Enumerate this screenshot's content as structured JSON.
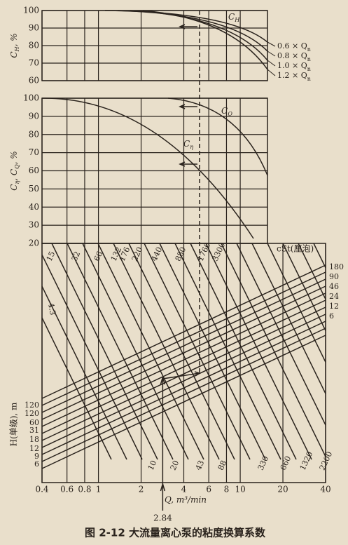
{
  "top_panel": {
    "y_label": [
      {
        "text": "C"
      },
      {
        "text": "H",
        "sub": true
      },
      {
        "text": ", %"
      }
    ],
    "ylim": [
      60,
      100
    ],
    "yticks": [
      100,
      90,
      80,
      70,
      60
    ],
    "curve_label": [
      {
        "text": "C"
      },
      {
        "text": "H",
        "sub": true
      }
    ],
    "flow_labels": [
      [
        {
          "text": "0.6 × Q"
        },
        {
          "text": "n",
          "sub": true
        }
      ],
      [
        {
          "text": "0.8 × Q"
        },
        {
          "text": "n",
          "sub": true
        }
      ],
      [
        {
          "text": "1.0 × Q"
        },
        {
          "text": "n",
          "sub": true
        }
      ],
      [
        {
          "text": "1.2 × Q"
        },
        {
          "text": "n",
          "sub": true
        }
      ]
    ]
  },
  "middle_panel": {
    "y_label": [
      {
        "text": "C"
      },
      {
        "text": "η",
        "sub": true
      },
      {
        "text": ", C"
      },
      {
        "text": "Q",
        "sub": true
      },
      {
        "text": ", %"
      }
    ],
    "ylim": [
      20,
      100
    ],
    "yticks": [
      100,
      90,
      80,
      70,
      60,
      50,
      40,
      30,
      20
    ],
    "curve_labels": [
      [
        {
          "text": "C"
        },
        {
          "text": "Q",
          "sub": true
        }
      ],
      [
        {
          "text": "C"
        },
        {
          "text": "η",
          "sub": true
        }
      ]
    ]
  },
  "bottom_panel": {
    "viscosity_unit": "cSt(厘泡)",
    "viscosity_top": [
      15,
      32,
      66,
      132,
      176,
      220,
      440,
      880,
      1760,
      3300
    ],
    "viscosity_bottom": [
      10,
      20,
      43,
      88,
      330,
      660,
      1320,
      2200
    ],
    "head_left": [
      120,
      120,
      60,
      31,
      18,
      12,
      9,
      6
    ],
    "head_right": [
      180,
      90,
      46,
      24,
      12,
      6
    ],
    "extra_label": "4.3",
    "y_label": "H(单级), m",
    "x_label": "Q, m³/min",
    "xlim": [
      0.4,
      40
    ],
    "log_x": true,
    "xticks": [
      0.4,
      0.6,
      0.8,
      1,
      2,
      4,
      6,
      8,
      10,
      20,
      40
    ],
    "marker": 2.84
  },
  "caption": "图 2-12   大流量离心泵的粘度换算系数"
}
